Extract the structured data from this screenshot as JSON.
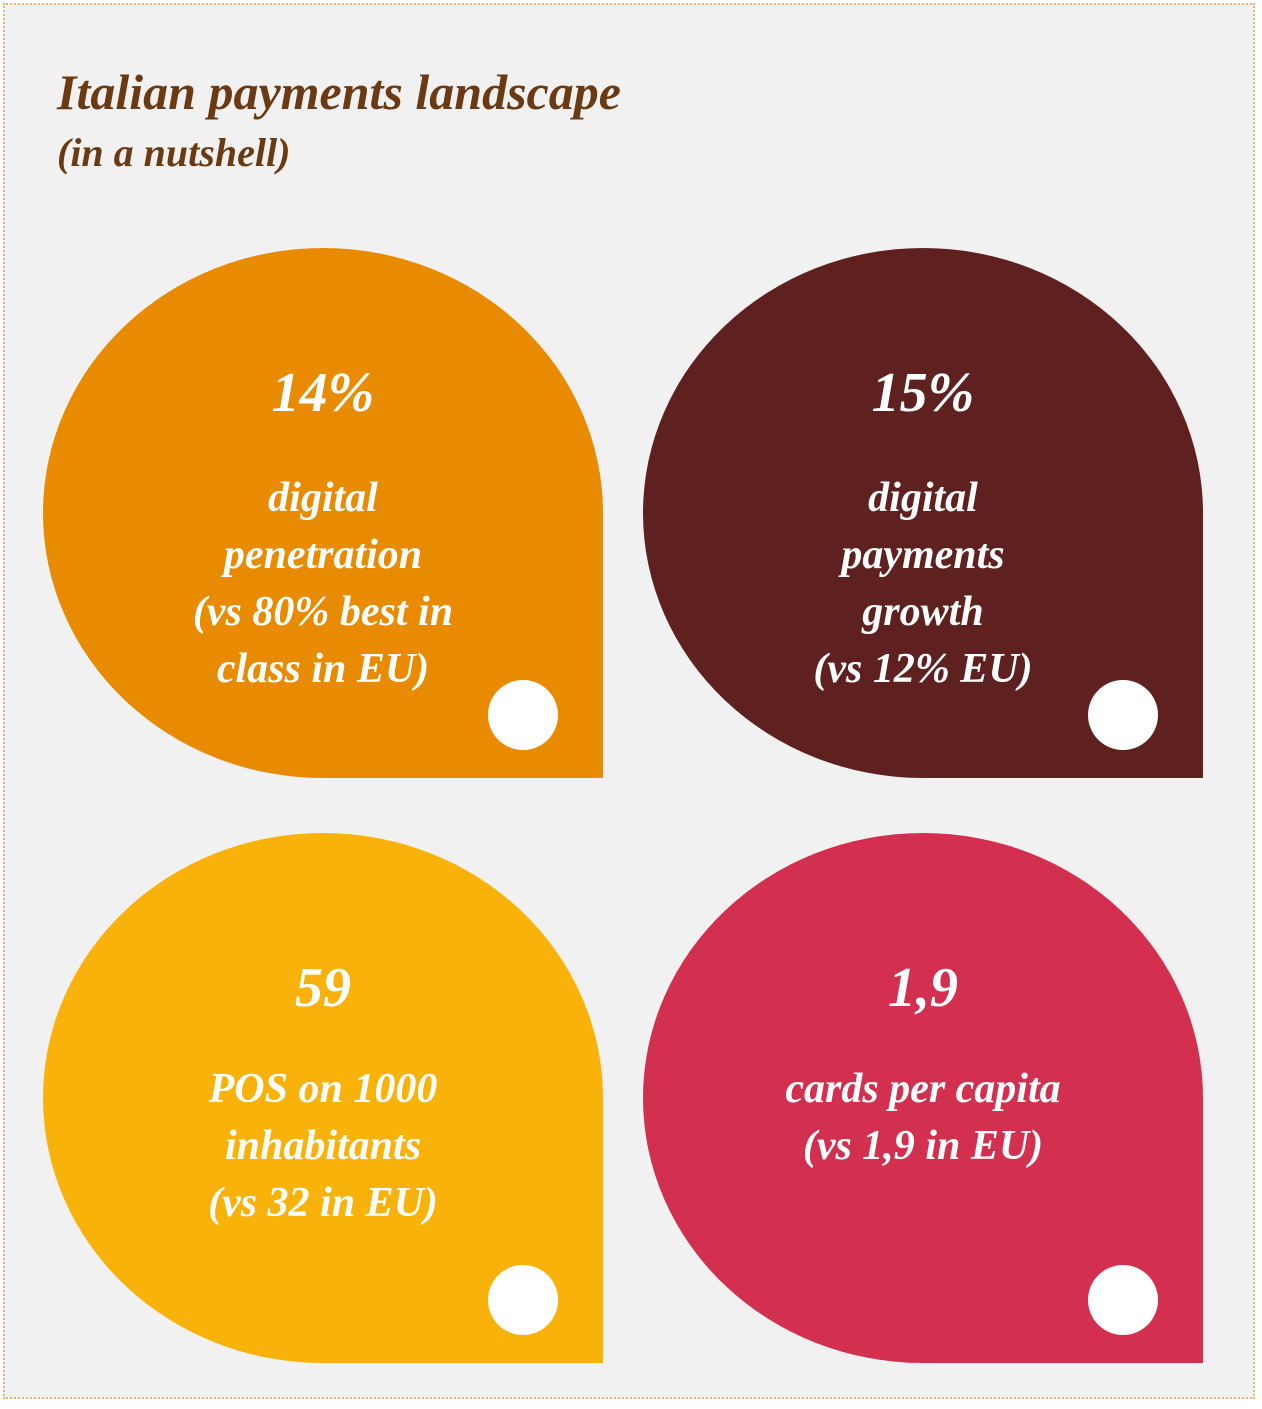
{
  "header": {
    "title": "Italian payments landscape",
    "subtitle": "(in a nutshell)"
  },
  "tiles": [
    {
      "value": "14%",
      "lines": [
        "digital",
        "penetration",
        "(vs 80% best in",
        "class in EU)"
      ]
    },
    {
      "value": "15%",
      "lines": [
        "digital",
        "payments",
        "growth",
        "(vs 12% EU)"
      ]
    },
    {
      "value": "59",
      "lines": [
        "POS on 1000",
        "inhabitants",
        "(vs 32 in EU)"
      ]
    },
    {
      "value": "1,9",
      "lines": [
        "cards per capita",
        "(vs 1,9 in EU)"
      ]
    }
  ]
}
